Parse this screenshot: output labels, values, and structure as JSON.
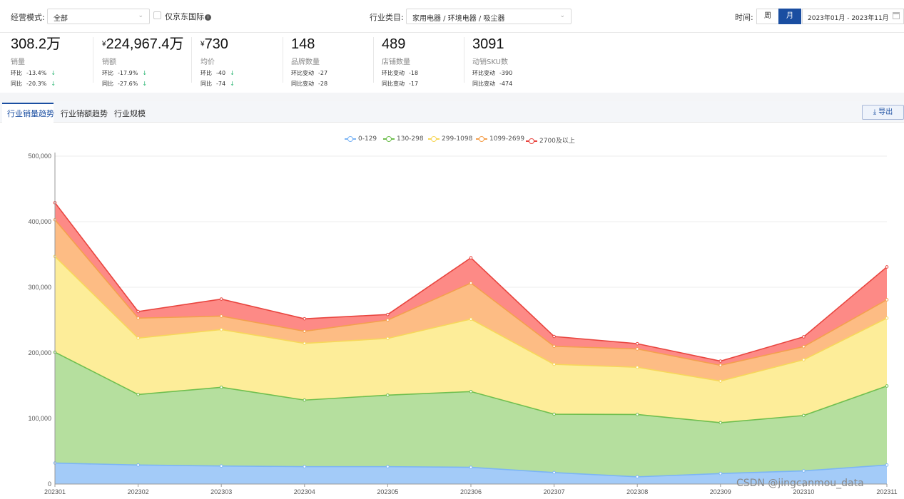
{
  "filters": {
    "mode_label": "经营模式:",
    "mode_value": "全部",
    "jd_intl_label": "仅京东国际",
    "info_icon": "i",
    "category_label": "行业类目:",
    "category_value": "家用电器 / 环境电器 / 吸尘器",
    "time_label": "时间:",
    "week_label": "周",
    "month_label": "月",
    "date_range": "2023年01月 - 2023年11月",
    "chevron": "⌄"
  },
  "metrics": [
    {
      "value": "308.2万",
      "prefix": "",
      "name": "销量",
      "row1_label": "环比",
      "row1_value": "-13.4%",
      "row1_arrow": "↓",
      "row2_label": "同比",
      "row2_value": "-20.3%",
      "row2_arrow": "↓"
    },
    {
      "value": "224,967.4万",
      "prefix": "¥",
      "name": "销额",
      "row1_label": "环比",
      "row1_value": "-17.9%",
      "row1_arrow": "↓",
      "row2_label": "同比",
      "row2_value": "-27.6%",
      "row2_arrow": "↓"
    },
    {
      "value": "730",
      "prefix": "¥",
      "name": "均价",
      "row1_label": "环比",
      "row1_value": "-40",
      "row1_arrow": "↓",
      "row2_label": "同比",
      "row2_value": "-74",
      "row2_arrow": "↓"
    },
    {
      "value": "148",
      "prefix": "",
      "name": "品牌数量",
      "row1_label": "环比变动",
      "row1_value": "-27",
      "row1_arrow": "",
      "row2_label": "同比变动",
      "row2_value": "-28",
      "row2_arrow": ""
    },
    {
      "value": "489",
      "prefix": "",
      "name": "店铺数量",
      "row1_label": "环比变动",
      "row1_value": "-18",
      "row1_arrow": "",
      "row2_label": "同比变动",
      "row2_value": "-17",
      "row2_arrow": ""
    },
    {
      "value": "3091",
      "prefix": "",
      "name": "动销SKU数",
      "row1_label": "环比变动",
      "row1_value": "-390",
      "row1_arrow": "",
      "row2_label": "同比变动",
      "row2_value": "-474",
      "row2_arrow": ""
    }
  ],
  "tabs": [
    "行业销量趋势",
    "行业销额趋势",
    "行业规模"
  ],
  "export_icon": "⤓",
  "export_label": "导出",
  "watermark": "CSDN @jingcanmou_data",
  "chart_data": {
    "type": "area",
    "stacked": true,
    "categories": [
      "202301",
      "202302",
      "202303",
      "202304",
      "202305",
      "202306",
      "202307",
      "202308",
      "202309",
      "202310",
      "202311"
    ],
    "ylim": [
      0,
      500000
    ],
    "yticks": [
      0,
      100000,
      200000,
      300000,
      400000,
      500000
    ],
    "ytick_labels": [
      "0",
      "100,000",
      "200,000",
      "300,000",
      "400,000",
      "500,000"
    ],
    "legend_position": "top-center",
    "series": [
      {
        "name": "0-129",
        "color": "#7cb5f5",
        "fill": "#a3cbf8",
        "values": [
          32000,
          29000,
          27500,
          26500,
          26500,
          25500,
          17500,
          11000,
          16000,
          20000,
          29000
        ]
      },
      {
        "name": "130-298",
        "color": "#6fbf4f",
        "fill": "#b5df9e",
        "values": [
          169000,
          107500,
          120000,
          101500,
          109000,
          115500,
          89000,
          95000,
          77500,
          84500,
          120500
        ]
      },
      {
        "name": "299-1098",
        "color": "#f7d75a",
        "fill": "#fded99",
        "values": [
          146000,
          86000,
          88000,
          86500,
          86500,
          110500,
          76000,
          72000,
          63500,
          85000,
          103500
        ]
      },
      {
        "name": "1099-2699",
        "color": "#f4a04e",
        "fill": "#fdbc84",
        "values": [
          56000,
          30500,
          20500,
          18500,
          28000,
          55000,
          27500,
          28000,
          24000,
          20000,
          28000
        ]
      },
      {
        "name": "2700及以上",
        "color": "#e8453f",
        "fill": "#fd8a86",
        "values": [
          26000,
          10000,
          26000,
          19000,
          8500,
          38500,
          15000,
          8000,
          6500,
          15000,
          50000
        ]
      }
    ]
  }
}
